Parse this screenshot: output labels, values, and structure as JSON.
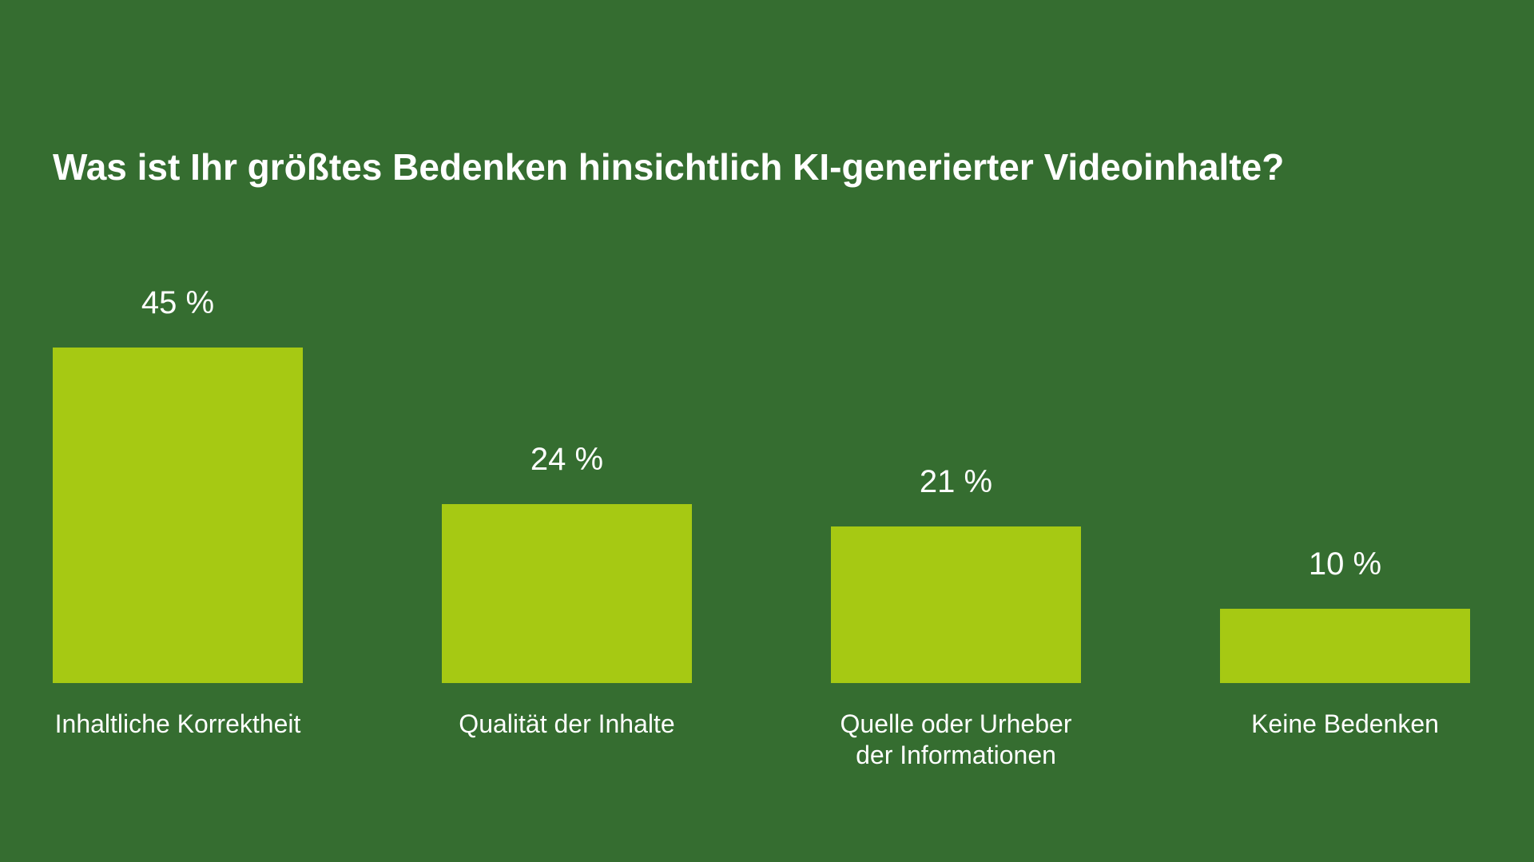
{
  "chart_data": {
    "type": "bar",
    "title": "Was ist Ihr größtes Bedenken hinsichtlich KI-generierter Videoinhalte?",
    "categories": [
      "Inhaltliche Korrektheit",
      "Qualität der Inhalte",
      "Quelle oder Urheber der Informationen",
      "Keine Bedenken"
    ],
    "values": [
      45,
      24,
      21,
      10
    ],
    "value_labels": [
      "45 %",
      "24 %",
      "21 %",
      "10 %"
    ],
    "color": "#a6c913"
  }
}
